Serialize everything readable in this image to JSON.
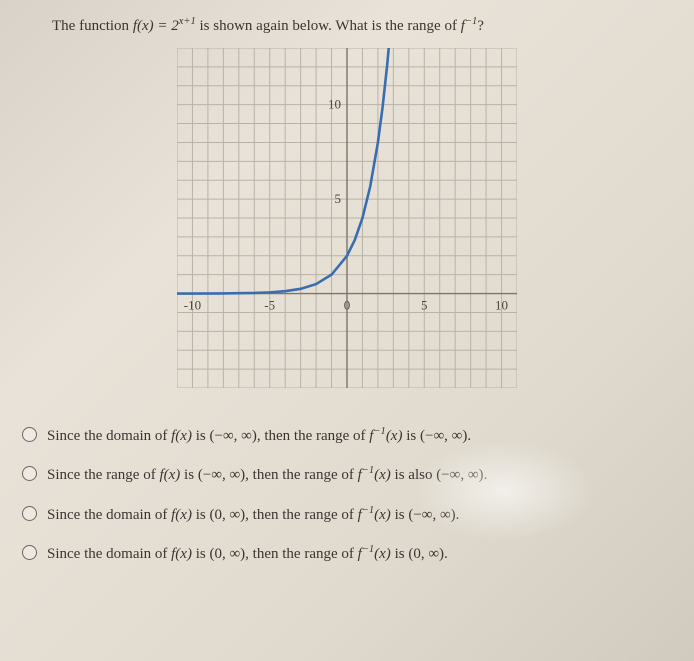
{
  "question": {
    "prefix": "The function ",
    "func": "f(x) = 2",
    "exp": "x+1",
    "mid": " is shown again below. What is the range of ",
    "inv": "f",
    "invexp": "−1",
    "suffix": "?"
  },
  "graph": {
    "xlim": [
      -11,
      11
    ],
    "ylim": [
      -5,
      13
    ],
    "xticks": [
      -10,
      -5,
      0,
      5,
      10
    ],
    "yticks_labeled": [
      5,
      10
    ],
    "grid_step": 1,
    "grid_color": "#b8b2a8",
    "axis_color": "#7a756d",
    "curve_color": "#3a6db0",
    "curve_points": [
      [
        -11,
        0.001
      ],
      [
        -10,
        0.002
      ],
      [
        -8,
        0.008
      ],
      [
        -6,
        0.031
      ],
      [
        -5,
        0.063
      ],
      [
        -4,
        0.125
      ],
      [
        -3,
        0.25
      ],
      [
        -2,
        0.5
      ],
      [
        -1,
        1
      ],
      [
        0,
        2
      ],
      [
        0.5,
        2.83
      ],
      [
        1,
        4
      ],
      [
        1.5,
        5.66
      ],
      [
        2,
        8
      ],
      [
        2.3,
        9.85
      ],
      [
        2.6,
        12.1
      ],
      [
        2.7,
        13
      ]
    ]
  },
  "options": [
    {
      "pre": "Since the domain of ",
      "f1": "f(x)",
      "mid1": " is ",
      "int1": "(−∞, ∞)",
      "mid2": ", then the range of ",
      "f2": "f",
      "f2exp": "−1",
      "f2arg": "(x)",
      "mid3": " is ",
      "int2": "(−∞, ∞)",
      "end": "."
    },
    {
      "pre": "Since the range of ",
      "f1": "f(x)",
      "mid1": " is ",
      "int1": "(−∞, ∞)",
      "mid2": ", then the range of ",
      "f2": "f",
      "f2exp": "−1",
      "f2arg": "(x)",
      "mid3": " is also ",
      "int2": "(−∞, ∞)",
      "end": "."
    },
    {
      "pre": "Since the domain of ",
      "f1": "f(x)",
      "mid1": " is ",
      "int1": "(0, ∞)",
      "mid2": ", then the range of ",
      "f2": "f",
      "f2exp": "−1",
      "f2arg": "(x)",
      "mid3": " is ",
      "int2": "(−∞, ∞)",
      "end": "."
    },
    {
      "pre": "Since the domain of ",
      "f1": "f(x)",
      "mid1": " is ",
      "int1": "(0, ∞)",
      "mid2": ", then the range of ",
      "f2": "f",
      "f2exp": "−1",
      "f2arg": "(x)",
      "mid3": " is ",
      "int2": "(0, ∞)",
      "end": "."
    }
  ]
}
